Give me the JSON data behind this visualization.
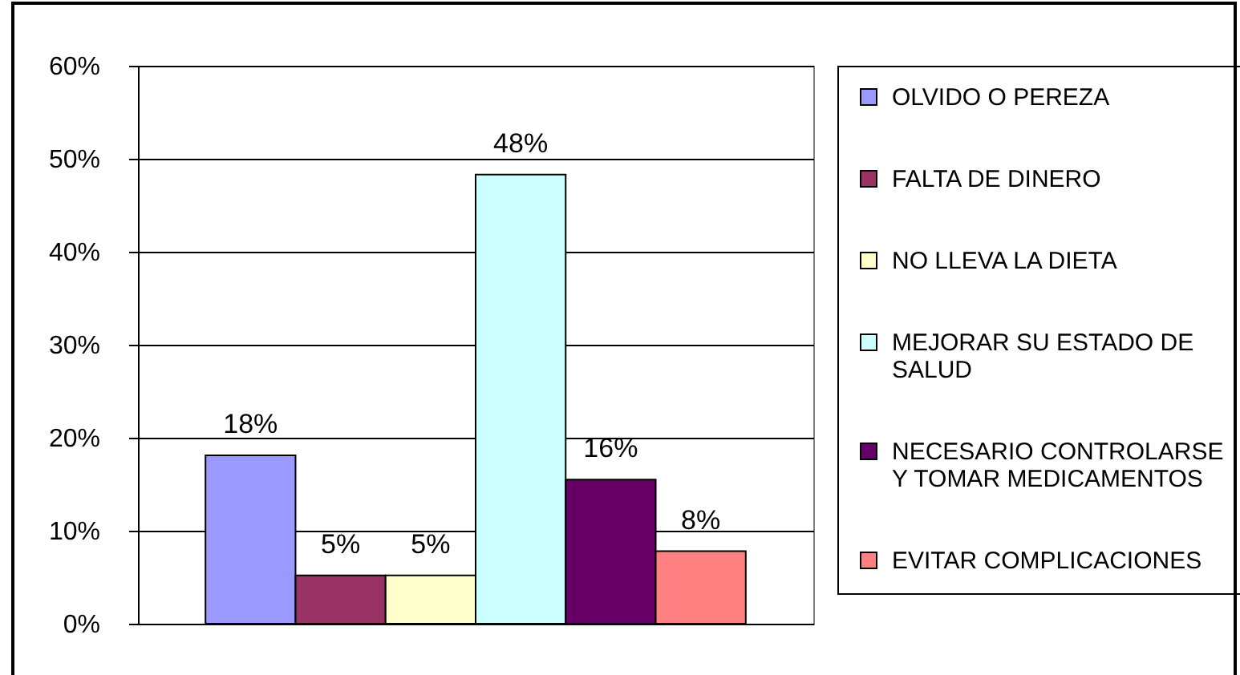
{
  "chart_data": {
    "type": "bar",
    "categories": [
      null
    ],
    "series": [
      {
        "name": "OLVIDO O PEREZA",
        "color": "#9999ff",
        "values": [
          18.1
        ],
        "value_labels": [
          "18%"
        ]
      },
      {
        "name": "FALTA DE DINERO",
        "color": "#993366",
        "values": [
          5.2
        ],
        "value_labels": [
          "5%"
        ]
      },
      {
        "name": "NO LLEVA LA DIETA",
        "color": "#ffffcc",
        "values": [
          5.2
        ],
        "value_labels": [
          "5%"
        ]
      },
      {
        "name": "MEJORAR SU ESTADO DE SALUD",
        "color": "#ccffff",
        "values": [
          48.3
        ],
        "value_labels": [
          "48%"
        ]
      },
      {
        "name": "NECESARIO CONTROLARSE Y TOMAR MEDICAMENTOS",
        "color": "#660066",
        "values": [
          15.5
        ],
        "value_labels": [
          "16%"
        ]
      },
      {
        "name": "EVITAR COMPLICACIONES",
        "color": "#ff8080",
        "values": [
          7.8
        ],
        "value_labels": [
          "8%"
        ]
      }
    ],
    "ylim": [
      0,
      60
    ],
    "yticks": [
      {
        "value": 0,
        "label": "0%"
      },
      {
        "value": 10,
        "label": "10%"
      },
      {
        "value": 20,
        "label": "20%"
      },
      {
        "value": 30,
        "label": "30%"
      },
      {
        "value": 40,
        "label": "40%"
      },
      {
        "value": 50,
        "label": "50%"
      },
      {
        "value": 60,
        "label": "60%"
      }
    ],
    "grid": "y",
    "legend": "right"
  }
}
